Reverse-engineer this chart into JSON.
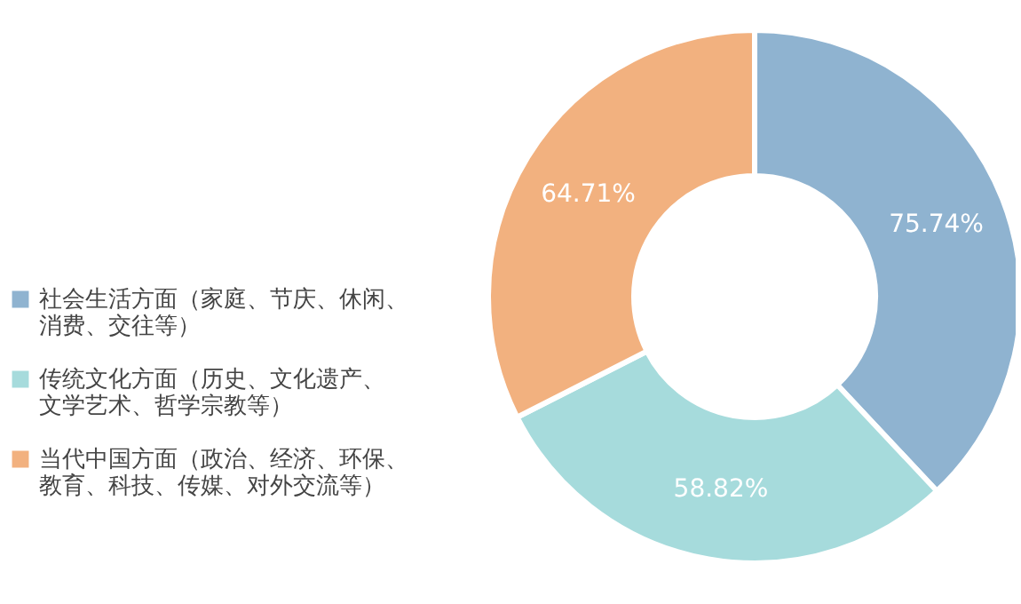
{
  "chart_data": {
    "type": "donut",
    "categories": [
      "社会生活方面（家庭、节庆、休闲、消费、交往等）",
      "传统文化方面（历史、文化遗产、文学艺术、哲学宗教等）",
      "当代中国方面（政治、经济、环保、教育、科技、传媒、对外交流等）"
    ],
    "values": [
      75.74,
      58.82,
      64.71
    ],
    "value_labels": [
      "75.74%",
      "58.82%",
      "64.71%"
    ],
    "colors": [
      "#8fb3d0",
      "#a6dbdc",
      "#f2b17f"
    ],
    "legend": "left"
  }
}
